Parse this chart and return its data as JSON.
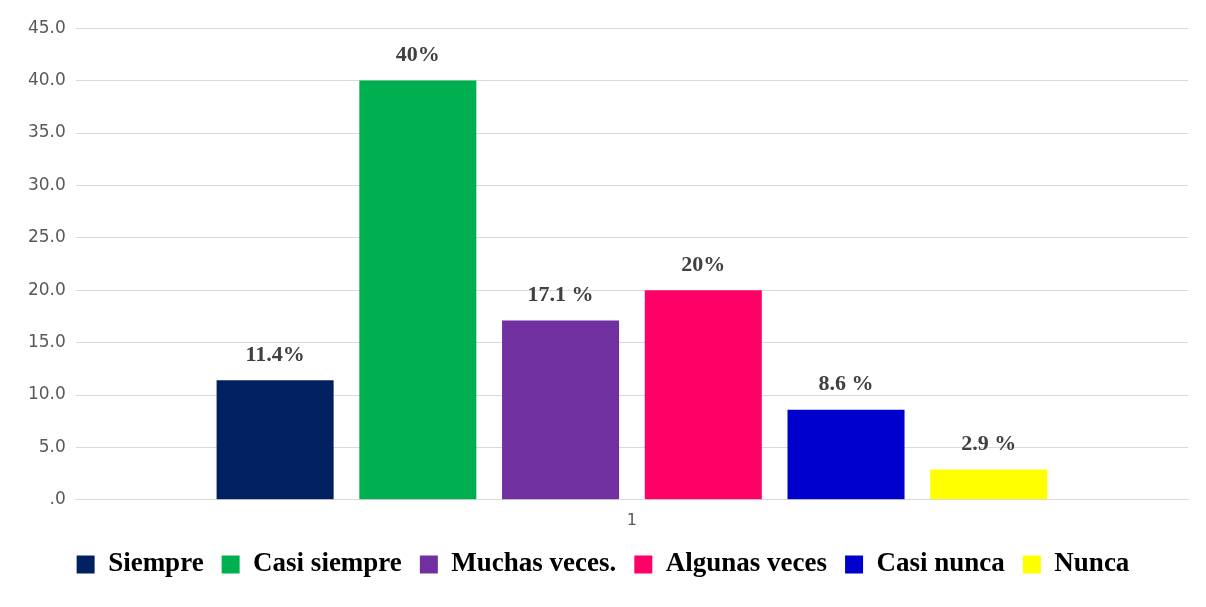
{
  "chart_data": {
    "type": "bar",
    "categories": [
      "1"
    ],
    "series": [
      {
        "name": "Siempre",
        "color": "#002060",
        "values": [
          11.4
        ],
        "value_labels": [
          "11.4%"
        ]
      },
      {
        "name": "Casi siempre",
        "color": "#00b050",
        "values": [
          40
        ],
        "value_labels": [
          "40%"
        ]
      },
      {
        "name": "Muchas veces.",
        "color": "#7030a0",
        "values": [
          17.1
        ],
        "value_labels": [
          "17.1 %"
        ]
      },
      {
        "name": "Algunas veces",
        "color": "#ff0066",
        "values": [
          20
        ],
        "value_labels": [
          "20%"
        ]
      },
      {
        "name": "Casi nunca",
        "color": "#0000cc",
        "values": [
          8.6
        ],
        "value_labels": [
          "8.6 %"
        ]
      },
      {
        "name": "Nunca",
        "color": "#ffff00",
        "values": [
          2.9
        ],
        "value_labels": [
          "2.9 %"
        ]
      }
    ],
    "ylim": [
      0,
      45
    ],
    "yticks": [
      {
        "value": 0,
        "label": ".0"
      },
      {
        "value": 5,
        "label": "5.0"
      },
      {
        "value": 10,
        "label": "10.0"
      },
      {
        "value": 15,
        "label": "15.0"
      },
      {
        "value": 20,
        "label": "20.0"
      },
      {
        "value": 25,
        "label": "25.0"
      },
      {
        "value": 30,
        "label": "30.0"
      },
      {
        "value": 35,
        "label": "35.0"
      },
      {
        "value": 40,
        "label": "40.0"
      },
      {
        "value": 45,
        "label": "45.0"
      }
    ],
    "grid": "y",
    "legend": "bottom"
  }
}
